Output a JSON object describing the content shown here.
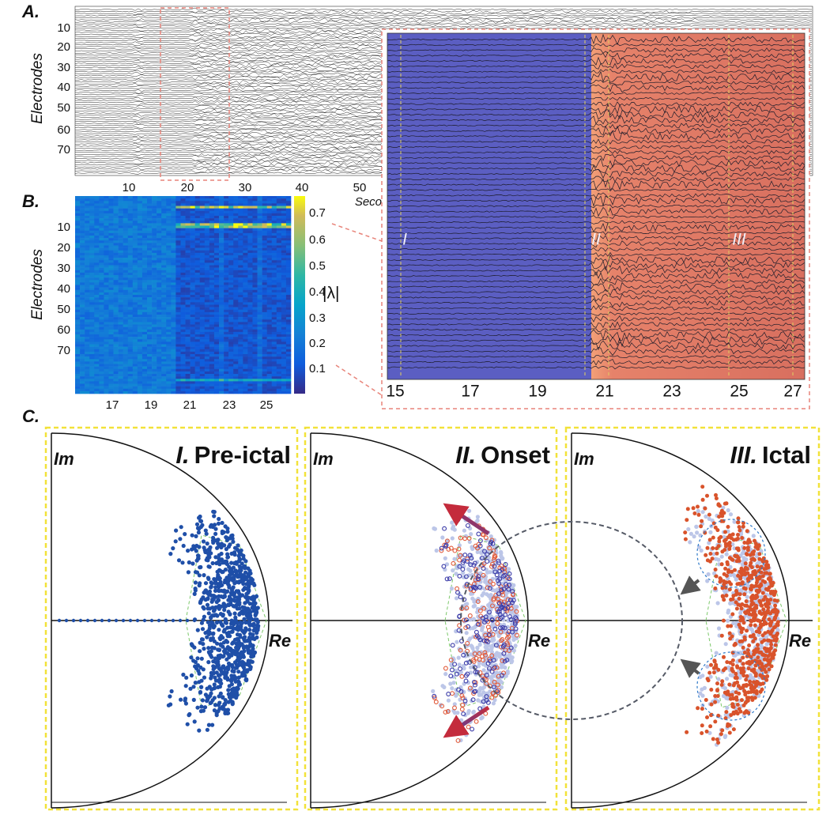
{
  "panel_a": {
    "label": "A.",
    "y_label": "Electrodes",
    "y_ticks": [
      "10",
      "20",
      "30",
      "40",
      "50",
      "60",
      "70"
    ],
    "x_ticks": [
      "10",
      "20",
      "30",
      "40",
      "50"
    ],
    "x_label": "Seconds"
  },
  "zoom": {
    "x_ticks": [
      "15",
      "17",
      "19",
      "21",
      "23",
      "25",
      "27"
    ],
    "markers": [
      "I",
      "II",
      "III"
    ]
  },
  "panel_b": {
    "label": "B.",
    "y_label": "Electrodes",
    "y_ticks": [
      "10",
      "20",
      "30",
      "40",
      "50",
      "60",
      "70"
    ],
    "x_ticks": [
      "17",
      "19",
      "21",
      "23",
      "25"
    ],
    "colorbar_ticks": [
      "0.7",
      "0.6",
      "0.5",
      "0.4",
      "0.3",
      "0.2",
      "0.1"
    ],
    "colorbar_label": "|λ|"
  },
  "panel_c": {
    "label": "C.",
    "panels": [
      {
        "numeral": "I.",
        "title": "Pre-ictal",
        "im": "Im",
        "re": "Re"
      },
      {
        "numeral": "II.",
        "title": "Onset",
        "im": "Im",
        "re": "Re"
      },
      {
        "numeral": "III.",
        "title": "Ictal",
        "im": "Im",
        "re": "Re"
      }
    ]
  }
}
